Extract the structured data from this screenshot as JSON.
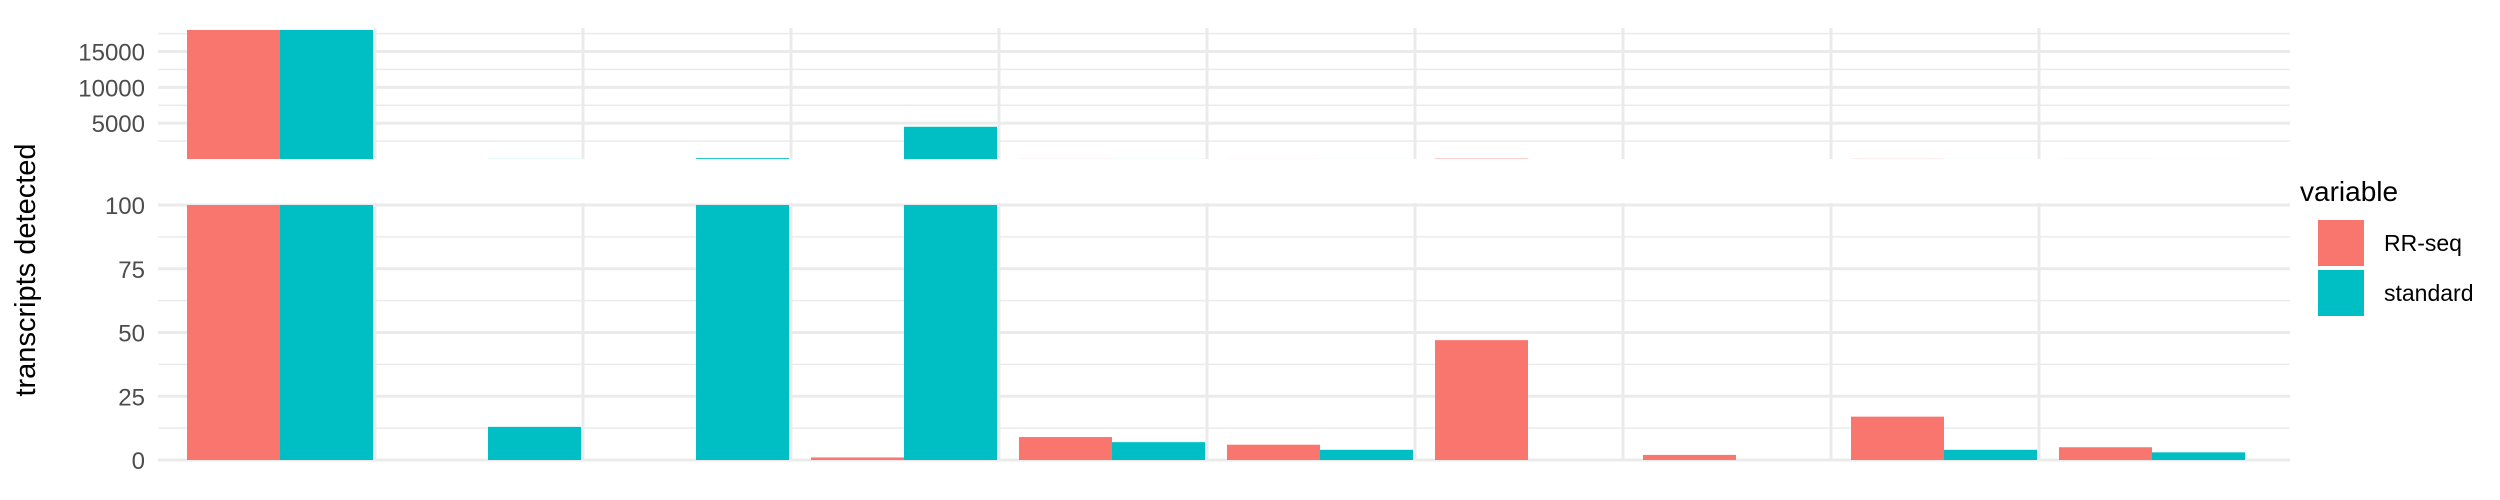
{
  "chart_data": {
    "type": "bar",
    "title": "",
    "xlabel": "",
    "ylabel": "transcripts detected",
    "grid": true,
    "legend_position": "right",
    "categories": [
      "",
      "",
      "",
      "",
      "",
      "",
      "",
      "",
      "",
      ""
    ],
    "series": [
      {
        "name": "RR-seq",
        "color": "#F8766D",
        "values": [
          18000,
          0,
          0,
          1,
          9,
          6,
          47,
          2,
          17,
          5
        ]
      },
      {
        "name": "standard",
        "color": "#00BFC4",
        "values": [
          18000,
          13,
          120,
          4500,
          7,
          4,
          0,
          0,
          4,
          3
        ]
      }
    ],
    "panels": [
      {
        "name": "upper",
        "ylim": [
          0,
          18000
        ],
        "yticks": [
          5000,
          10000,
          15000
        ],
        "ytick_labels": [
          "5000",
          "10000",
          "15000"
        ]
      },
      {
        "name": "lower",
        "ylim": [
          0,
          100
        ],
        "yticks": [
          0,
          25,
          50,
          75,
          100
        ],
        "ytick_labels": [
          "0",
          "25",
          "50",
          "75",
          "100"
        ]
      }
    ]
  },
  "legend": {
    "title": "variable",
    "items": [
      {
        "label": "RR-seq",
        "color": "#F8766D"
      },
      {
        "label": "standard",
        "color": "#00BFC4"
      }
    ]
  }
}
